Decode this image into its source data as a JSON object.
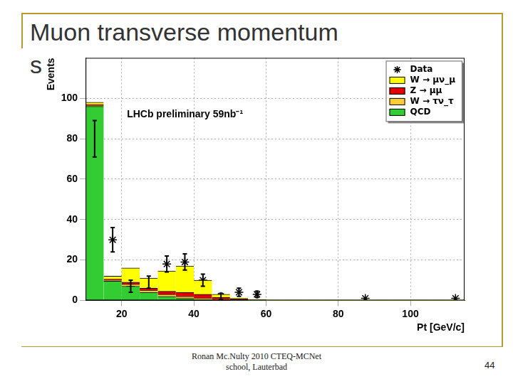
{
  "slide": {
    "title_lines": [
      "Muon transverse momentum",
      "s"
    ],
    "footer": [
      "Ronan Mc.Nulty 2010 CTEQ-MCNet",
      "school, Lauterbad"
    ],
    "page": "44"
  },
  "chart_data": {
    "type": "histogram",
    "annotation": "LHCb preliminary 59nb⁻¹",
    "x_label": "Pt [GeV/c]",
    "y_label": "Events",
    "bins": [
      10,
      15,
      20,
      25,
      30,
      35,
      40,
      45,
      50,
      55,
      60,
      65,
      70,
      75,
      80,
      85,
      90,
      95,
      100,
      105,
      110,
      115
    ],
    "series": [
      {
        "name": "Data",
        "type": "scatter",
        "marker": "star",
        "color": "#000000",
        "values": [
          80,
          30,
          7,
          9,
          18,
          19,
          10,
          2,
          4,
          3,
          null,
          null,
          null,
          null,
          null,
          1,
          null,
          null,
          null,
          null,
          1
        ],
        "errors": [
          9,
          6,
          3,
          3,
          4,
          4,
          3,
          1.5,
          2,
          1.5,
          null,
          null,
          null,
          null,
          null,
          null,
          null,
          null,
          null,
          null,
          null
        ]
      },
      {
        "name": "W → μν_μ",
        "type": "bar",
        "color": "#ffff00",
        "values": [
          1,
          1.5,
          7,
          5,
          10,
          13,
          7,
          1.5,
          0.5,
          0.3,
          0,
          0,
          0,
          0,
          0,
          0,
          0,
          0,
          0,
          0,
          0
        ]
      },
      {
        "name": "Z → μμ",
        "type": "bar",
        "color": "#e00000",
        "values": [
          0.5,
          0.5,
          1,
          1,
          1.5,
          2,
          2,
          1,
          0.5,
          0.2,
          0,
          0,
          0,
          0,
          0,
          0,
          0,
          0,
          0,
          0,
          0
        ]
      },
      {
        "name": "W → τν_τ",
        "type": "bar",
        "color": "#ffcc33",
        "values": [
          0.5,
          0.5,
          1,
          1,
          1,
          1,
          0.5,
          0.3,
          0.2,
          0,
          0,
          0,
          0,
          0,
          0,
          0,
          0,
          0,
          0,
          0,
          0
        ]
      },
      {
        "name": "QCD",
        "type": "bar",
        "color": "#33cc33",
        "values": [
          96,
          9.5,
          7,
          4,
          2,
          1,
          0.5,
          0.2,
          0,
          0,
          0,
          0,
          0,
          0,
          0,
          0,
          0,
          0,
          0,
          0,
          0
        ]
      }
    ],
    "stacked": true,
    "xlim": [
      10,
      115
    ],
    "ylim": [
      0,
      120
    ],
    "xticks": [
      20,
      40,
      60,
      80,
      100
    ],
    "yticks": [
      0,
      20,
      40,
      60,
      80,
      100
    ],
    "grid": true,
    "legend": "upper right"
  }
}
